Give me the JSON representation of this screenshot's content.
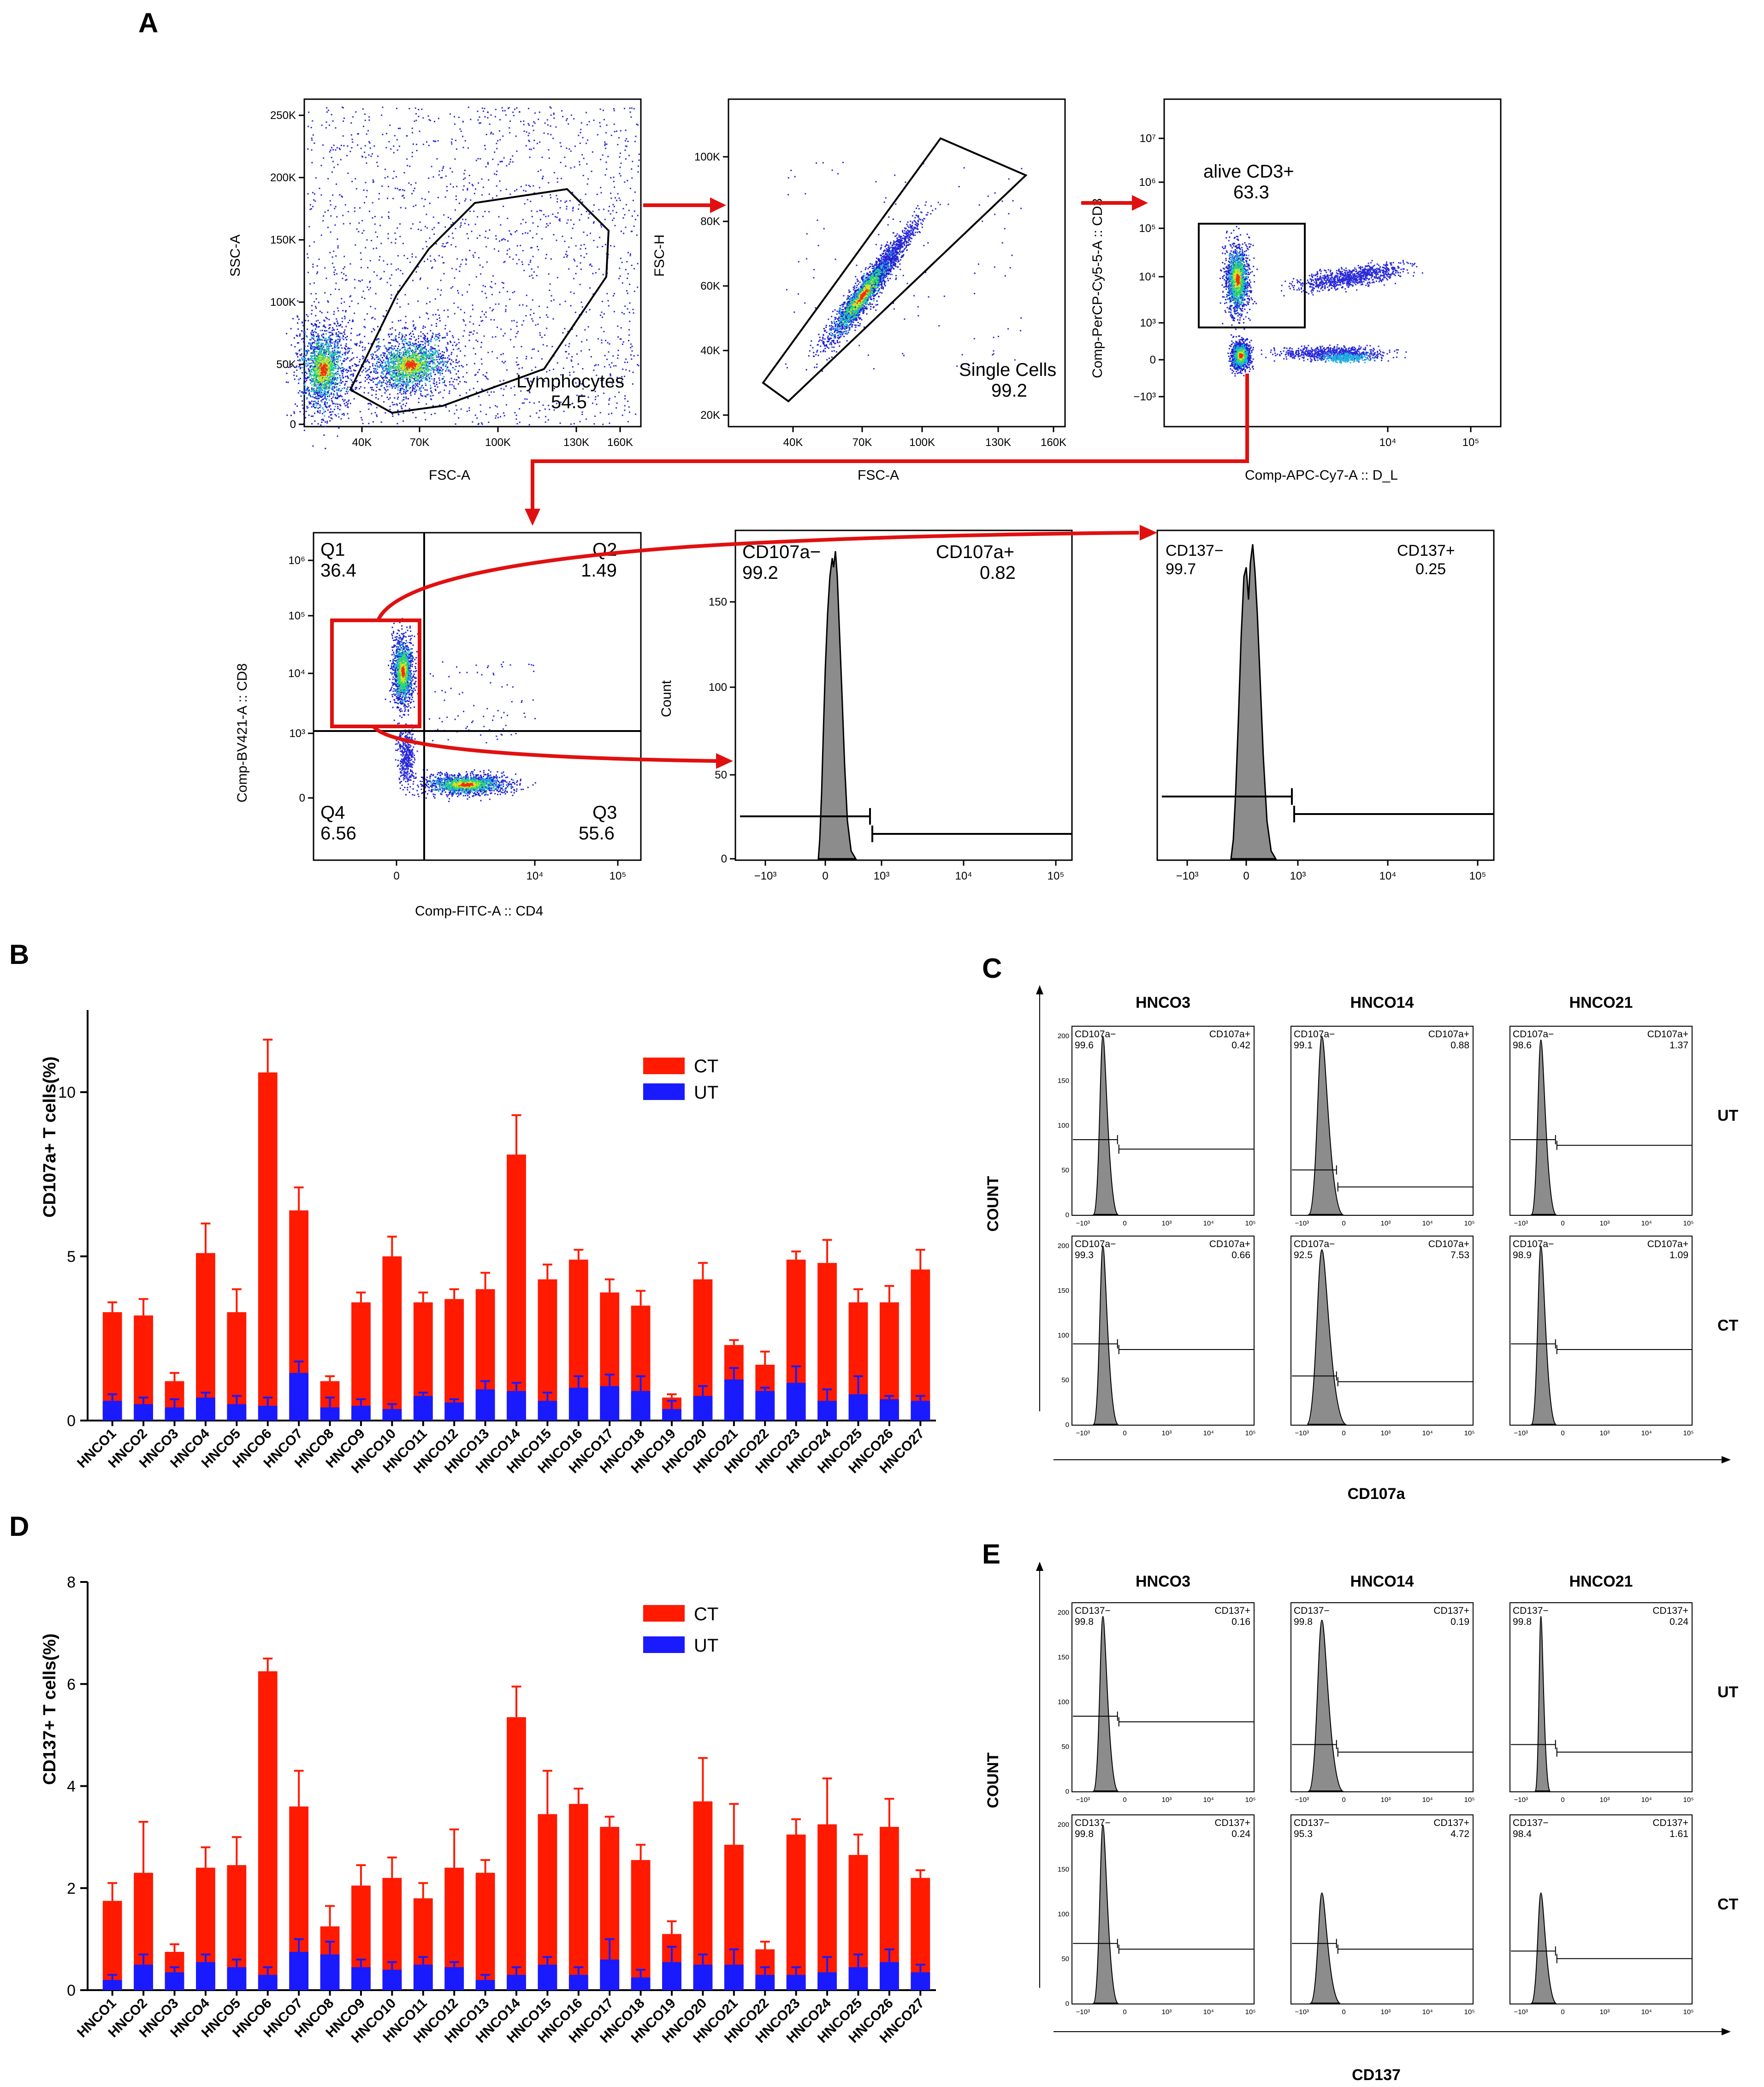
{
  "panels": {
    "A": "A",
    "B": "B",
    "C": "C",
    "D": "D",
    "E": "E"
  },
  "flow": {
    "p1": {
      "xlabel": "FSC-A",
      "ylabel": "SSC-A",
      "gate_name": "Lymphocytes",
      "gate_value": "54.5",
      "xticks": [
        "40K",
        "70K",
        "100K",
        "130K",
        "160K"
      ],
      "yticks": [
        "250K",
        "200K",
        "150K",
        "100K",
        "50K",
        "0"
      ]
    },
    "p2": {
      "xlabel": "FSC-A",
      "ylabel": "FSC-H",
      "gate_name": "Single Cells",
      "gate_value": "99.2",
      "xticks": [
        "40K",
        "70K",
        "100K",
        "130K",
        "160K"
      ],
      "yticks": [
        "100K",
        "80K",
        "60K",
        "40K",
        "20K"
      ]
    },
    "p3": {
      "xlabel": "Comp-APC-Cy7-A :: D_L",
      "ylabel": "Comp-PerCP-Cy5-5-A :: CD3",
      "gate_name": "alive CD3+",
      "gate_value": "63.3",
      "xticks": [
        "10⁴",
        "10⁵"
      ],
      "yticks": [
        "10⁷",
        "10⁶",
        "10⁵",
        "10⁴",
        "10³",
        "0",
        "−10³"
      ]
    },
    "p4": {
      "xlabel": "Comp-FITC-A :: CD4",
      "ylabel": "Comp-BV421-A :: CD8",
      "q1": "Q1",
      "q1v": "36.4",
      "q2": "Q2",
      "q2v": "1.49",
      "q3": "Q3",
      "q3v": "55.6",
      "q4": "Q4",
      "q4v": "6.56",
      "xticks": [
        "0",
        "10⁴",
        "10⁵"
      ],
      "yticks": [
        "10⁶",
        "10⁵",
        "10⁴",
        "10³",
        "0"
      ]
    },
    "p5": {
      "ylabel": "Count",
      "neg": "CD107a−",
      "negv": "99.2",
      "pos": "CD107a+",
      "posv": "0.82",
      "xticks": [
        "−10³",
        "0",
        "10³",
        "10⁴",
        "10⁵"
      ],
      "yticks": [
        "150",
        "100",
        "50",
        "0"
      ]
    },
    "p6": {
      "neg": "CD137−",
      "negv": "99.7",
      "pos": "CD137+",
      "posv": "0.25",
      "xticks": [
        "−10³",
        "0",
        "10³",
        "10⁴",
        "10⁵"
      ]
    }
  },
  "chart_data": [
    {
      "type": "bar",
      "title": "",
      "xlabel": "",
      "ylabel": "CD107a+ T cells(%)",
      "ylim": [
        0,
        12.5
      ],
      "yticks": [
        "0",
        "5",
        "10"
      ],
      "categories": [
        "HNCO1",
        "HNCO2",
        "HNCO3",
        "HNCO4",
        "HNCO5",
        "HNCO6",
        "HNCO7",
        "HNCO8",
        "HNCO9",
        "HNCO10",
        "HNCO11",
        "HNCO12",
        "HNCO13",
        "HNCO14",
        "HNCO15",
        "HNCO16",
        "HNCO17",
        "HNCO18",
        "HNCO19",
        "HNCO20",
        "HNCO21",
        "HNCO22",
        "HNCO23",
        "HNCO24",
        "HNCO25",
        "HNCO26",
        "HNCO27"
      ],
      "series": [
        {
          "name": "CT",
          "color": "#ff1a00",
          "values": [
            3.3,
            3.2,
            1.2,
            5.1,
            3.3,
            10.6,
            6.4,
            1.2,
            3.6,
            5.0,
            3.6,
            3.7,
            4.0,
            8.1,
            4.3,
            4.9,
            3.9,
            3.5,
            0.7,
            4.3,
            2.3,
            1.7,
            4.9,
            4.8,
            3.6,
            3.6,
            4.6
          ],
          "errors": [
            0.3,
            0.5,
            0.25,
            0.9,
            0.7,
            1.0,
            0.7,
            0.15,
            0.3,
            0.6,
            0.3,
            0.3,
            0.5,
            1.2,
            0.45,
            0.3,
            0.4,
            0.45,
            0.1,
            0.5,
            0.15,
            0.4,
            0.25,
            0.7,
            0.4,
            0.5,
            0.6
          ]
        },
        {
          "name": "UT",
          "color": "#1a1aff",
          "values": [
            0.6,
            0.5,
            0.4,
            0.7,
            0.5,
            0.45,
            1.45,
            0.4,
            0.45,
            0.35,
            0.75,
            0.55,
            0.95,
            0.9,
            0.6,
            1.0,
            1.05,
            0.9,
            0.35,
            0.75,
            1.25,
            0.9,
            1.15,
            0.6,
            0.8,
            0.65,
            0.6
          ],
          "errors": [
            0.2,
            0.2,
            0.25,
            0.15,
            0.25,
            0.25,
            0.35,
            0.3,
            0.2,
            0.15,
            0.1,
            0.1,
            0.25,
            0.25,
            0.25,
            0.35,
            0.35,
            0.45,
            0.25,
            0.3,
            0.35,
            0.1,
            0.5,
            0.35,
            0.55,
            0.1,
            0.15
          ]
        }
      ],
      "legend": [
        "CT",
        "UT"
      ]
    },
    {
      "type": "bar",
      "title": "",
      "xlabel": "",
      "ylabel": "CD137+ T cells(%)",
      "ylim": [
        0,
        8
      ],
      "yticks": [
        "0",
        "2",
        "4",
        "6",
        "8"
      ],
      "categories": [
        "HNCO1",
        "HNCO2",
        "HNCO3",
        "HNCO4",
        "HNCO5",
        "HNCO6",
        "HNCO7",
        "HNCO8",
        "HNCO9",
        "HNCO10",
        "HNCO11",
        "HNCO12",
        "HNCO13",
        "HNCO14",
        "HNCO15",
        "HNCO16",
        "HNCO17",
        "HNCO18",
        "HNCO19",
        "HNCO20",
        "HNCO21",
        "HNCO22",
        "HNCO23",
        "HNCO24",
        "HNCO25",
        "HNCO26",
        "HNCO27"
      ],
      "series": [
        {
          "name": "CT",
          "color": "#ff1a00",
          "values": [
            1.75,
            2.3,
            0.75,
            2.4,
            2.45,
            6.25,
            3.6,
            1.25,
            2.05,
            2.2,
            1.8,
            2.4,
            2.3,
            5.35,
            3.45,
            3.65,
            3.2,
            2.55,
            1.1,
            3.7,
            2.85,
            0.8,
            3.05,
            3.25,
            2.65,
            3.2,
            2.2
          ],
          "errors": [
            0.35,
            1.0,
            0.15,
            0.4,
            0.55,
            0.25,
            0.7,
            0.4,
            0.4,
            0.4,
            0.3,
            0.75,
            0.25,
            0.6,
            0.85,
            0.3,
            0.2,
            0.3,
            0.25,
            0.85,
            0.8,
            0.15,
            0.3,
            0.9,
            0.4,
            0.55,
            0.15
          ]
        },
        {
          "name": "UT",
          "color": "#1a1aff",
          "values": [
            0.2,
            0.5,
            0.35,
            0.55,
            0.45,
            0.3,
            0.75,
            0.7,
            0.45,
            0.4,
            0.5,
            0.45,
            0.2,
            0.3,
            0.5,
            0.3,
            0.6,
            0.25,
            0.55,
            0.5,
            0.5,
            0.3,
            0.3,
            0.35,
            0.45,
            0.55,
            0.35
          ],
          "errors": [
            0.1,
            0.2,
            0.1,
            0.15,
            0.15,
            0.15,
            0.25,
            0.25,
            0.15,
            0.15,
            0.15,
            0.1,
            0.1,
            0.15,
            0.15,
            0.15,
            0.4,
            0.15,
            0.3,
            0.2,
            0.3,
            0.15,
            0.15,
            0.3,
            0.25,
            0.25,
            0.15
          ]
        }
      ],
      "legend": [
        "CT",
        "UT"
      ]
    }
  ],
  "panelC": {
    "cols": [
      "HNCO3",
      "HNCO14",
      "HNCO21"
    ],
    "rows": [
      "UT",
      "CT"
    ],
    "ylabel": "COUNT",
    "xlabel": "CD107a",
    "neg": "CD107a−",
    "pos": "CD107a+",
    "vals": [
      [
        "99.6",
        "0.42",
        "99.1",
        "0.88",
        "98.6",
        "1.37"
      ],
      [
        "99.3",
        "0.66",
        "92.5",
        "7.53",
        "98.9",
        "1.09"
      ]
    ],
    "ytick": [
      "200",
      "150",
      "100",
      "50",
      "0"
    ],
    "xtick": [
      "−10³",
      "0",
      "10³",
      "10⁴",
      "10⁵"
    ]
  },
  "panelE": {
    "cols": [
      "HNCO3",
      "HNCO14",
      "HNCO21"
    ],
    "rows": [
      "UT",
      "CT"
    ],
    "ylabel": "COUNT",
    "xlabel": "CD137",
    "neg": "CD137−",
    "pos": "CD137+",
    "vals": [
      [
        "99.8",
        "0.16",
        "99.8",
        "0.19",
        "99.8",
        "0.24"
      ],
      [
        "99.8",
        "0.24",
        "95.3",
        "4.72",
        "98.4",
        "1.61"
      ]
    ],
    "ytick": [
      "200",
      "150",
      "100",
      "50",
      "0"
    ],
    "xtick": [
      "−10³",
      "0",
      "10³",
      "10⁴",
      "10⁵"
    ]
  }
}
